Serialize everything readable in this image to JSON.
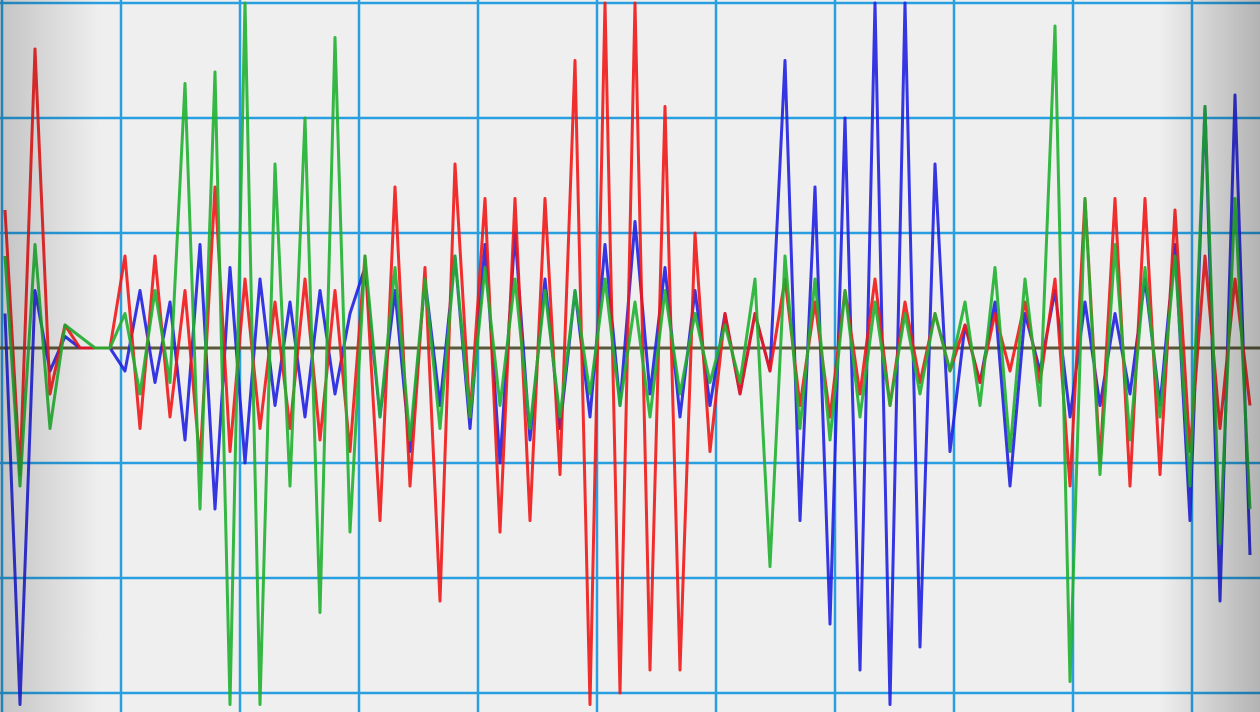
{
  "chart_data": {
    "type": "line",
    "title": "",
    "xlabel": "",
    "ylabel": "",
    "grid": true,
    "legend": "none",
    "xlim": [
      0,
      84
    ],
    "ylim": [
      -3,
      3
    ],
    "grid_color": "#2a9fe0",
    "baseline_color": "#5a5a3a",
    "background_color": "#efefef",
    "series": [
      {
        "color": "#2020e0",
        "values": [
          0.3,
          -3.1,
          0.5,
          -0.2,
          0.1,
          0,
          0,
          0,
          -0.2,
          0.5,
          -0.3,
          0.4,
          -0.8,
          0.9,
          -1.4,
          0.7,
          -1,
          0.6,
          -0.5,
          0.4,
          -0.6,
          0.5,
          -0.4,
          0.3,
          0.7,
          -0.6,
          0.5,
          -0.9,
          0.6,
          -0.5,
          0.8,
          -0.7,
          0.9,
          -1,
          1,
          -0.8,
          0.6,
          -0.7,
          0.5,
          -0.6,
          0.9,
          -0.5,
          1.1,
          -0.4,
          0.7,
          -0.6,
          0.5,
          -0.5,
          0.3,
          -0.4,
          0.3,
          -0.2,
          2.5,
          -1.5,
          1.4,
          -2.4,
          2,
          -2.8,
          3,
          -3.1,
          3,
          -2.6,
          1.6,
          -0.9,
          0.2,
          -0.3,
          0.4,
          -1.2,
          0.3,
          -0.2,
          0.5,
          -0.6,
          0.4,
          -0.5,
          0.3,
          -0.4,
          0.6,
          -0.5,
          0.9,
          -1.5,
          2.1,
          -2.2,
          2.2,
          -1.8
        ]
      },
      {
        "color": "#f01818",
        "values": [
          1.2,
          -1.1,
          2.6,
          -0.4,
          0.2,
          0,
          0,
          0,
          0.8,
          -0.7,
          0.8,
          -0.6,
          0.5,
          -1,
          1.4,
          -0.9,
          0.6,
          -0.7,
          0.4,
          -0.7,
          0.6,
          -0.8,
          0.5,
          -0.9,
          0.8,
          -1.5,
          1.4,
          -1.2,
          0.7,
          -2.2,
          1.6,
          -0.6,
          1.3,
          -1.6,
          1.3,
          -1.5,
          1.3,
          -1.1,
          2.5,
          -3.1,
          3,
          -3,
          3,
          -2.8,
          2.1,
          -2.8,
          1,
          -0.9,
          0.3,
          -0.4,
          0.3,
          -0.2,
          0.6,
          -0.5,
          0.4,
          -0.6,
          0.5,
          -0.4,
          0.6,
          -0.5,
          0.4,
          -0.3,
          0.3,
          -0.2,
          0.2,
          -0.3,
          0.3,
          -0.2,
          0.4,
          -0.3,
          0.6,
          -1.2,
          1.3,
          -1,
          1.3,
          -1.2,
          1.3,
          -1.1,
          1.2,
          -0.9,
          0.8,
          -0.7,
          0.6,
          -0.5
        ]
      },
      {
        "color": "#20b030",
        "values": [
          0.8,
          -1.2,
          0.9,
          -0.7,
          0.2,
          0.1,
          0,
          0,
          0.3,
          -0.4,
          0.5,
          -0.3,
          2.3,
          -1.4,
          2.4,
          -3.1,
          3,
          -3.1,
          1.6,
          -1.2,
          2,
          -2.3,
          2.7,
          -1.6,
          0.8,
          -0.6,
          0.7,
          -0.8,
          0.6,
          -0.7,
          0.8,
          -0.6,
          0.7,
          -0.5,
          0.6,
          -0.7,
          0.5,
          -0.6,
          0.5,
          -0.4,
          0.6,
          -0.5,
          0.4,
          -0.6,
          0.5,
          -0.4,
          0.3,
          -0.3,
          0.2,
          -0.3,
          0.6,
          -1.9,
          0.8,
          -0.7,
          0.6,
          -0.8,
          0.5,
          -0.6,
          0.4,
          -0.5,
          0.3,
          -0.4,
          0.3,
          -0.2,
          0.4,
          -0.5,
          0.7,
          -0.9,
          0.6,
          -0.5,
          2.8,
          -2.9,
          1.3,
          -1.1,
          0.9,
          -0.8,
          0.7,
          -0.6,
          0.8,
          -1.2,
          2.1,
          -1.7,
          1.3,
          -1.4
        ]
      }
    ]
  }
}
